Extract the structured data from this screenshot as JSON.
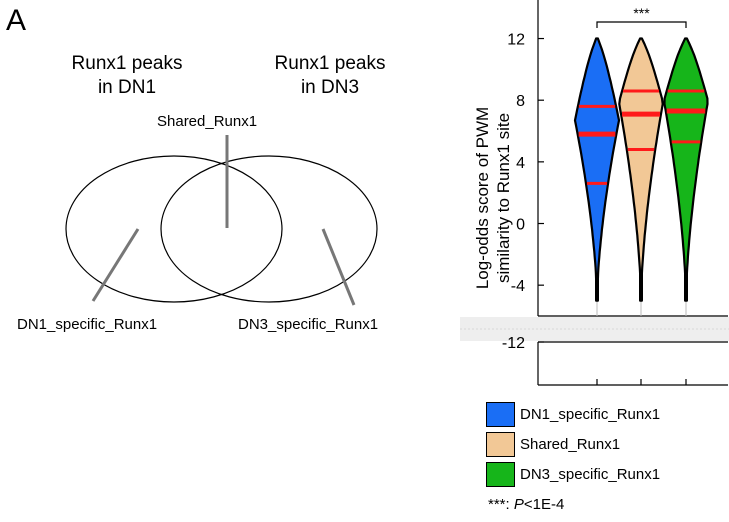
{
  "panel_letter": "A",
  "venn": {
    "left_title": [
      "Runx1 peaks",
      "in DN1"
    ],
    "right_title": [
      "Runx1 peaks",
      "in DN3"
    ],
    "shared_label": "Shared_Runx1",
    "left_label": "DN1_specific_Runx1",
    "right_label": "DN3_specific_Runx1"
  },
  "colors": {
    "dn1": "#1a6ef5",
    "shared": "#f2c896",
    "dn3": "#16b51a",
    "median": "#ff1a1a"
  },
  "chart_data": {
    "type": "violin",
    "ylabel": "Log-odds score of PWM\nsimilarity to Runx1 site",
    "ylim_upper": [
      -6,
      14.5
    ],
    "ylim_lower": [
      -16.5,
      -11
    ],
    "upper_ticks": [
      -4,
      0,
      4,
      8,
      12
    ],
    "lower_ticks": [
      -12
    ],
    "axis_break": true,
    "series": [
      {
        "name": "DN1_specific_Runx1",
        "color_key": "dn1",
        "q1": 2.6,
        "median": 5.8,
        "q3": 7.6,
        "min": -5,
        "max": 12
      },
      {
        "name": "Shared_Runx1",
        "color_key": "shared",
        "q1": 4.8,
        "median": 7.1,
        "q3": 8.6,
        "min": -5,
        "max": 12
      },
      {
        "name": "DN3_specific_Runx1",
        "color_key": "dn3",
        "q1": 5.3,
        "median": 7.3,
        "q3": 8.6,
        "min": -5,
        "max": 12
      }
    ],
    "significance": {
      "from": 0,
      "to": 2,
      "label": "***"
    }
  },
  "legend": [
    {
      "label": "DN1_specific_Runx1",
      "color_key": "dn1"
    },
    {
      "label": "Shared_Runx1",
      "color_key": "shared"
    },
    {
      "label": "DN3_specific_Runx1",
      "color_key": "dn3"
    }
  ],
  "note": {
    "stars": "***",
    "sep": ": ",
    "p": "P",
    "rest": "<1E-4"
  }
}
